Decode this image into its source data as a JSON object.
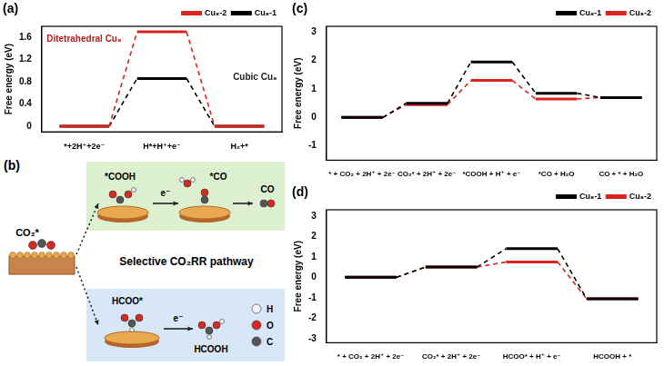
{
  "chart_data": [
    {
      "type": "line",
      "title": "(a)",
      "y_label": "Free energy (eV)",
      "categories": [
        "*+2H⁺+2e⁻",
        "H*+H⁺+e⁻",
        "H₂+*"
      ],
      "series": [
        {
          "name": "Cu₈-2",
          "color": "#d9231f",
          "values": [
            0,
            1.7,
            0
          ]
        },
        {
          "name": "Cu₈-1",
          "color": "#000000",
          "values": [
            0,
            0.86,
            0
          ]
        }
      ],
      "ylim": [
        -0.1,
        1.8
      ],
      "yticks": [
        0,
        0.4,
        0.8,
        1.2,
        1.6
      ],
      "grid": false,
      "legend": "upper right",
      "annotations": [
        {
          "text": "Ditetrahedral Cu₈",
          "color": "#b3201b"
        },
        {
          "text": "Cubic Cu₈",
          "color": "#222222"
        }
      ]
    },
    {
      "type": "line",
      "title": "(c)",
      "y_label": "Free energy (eV)",
      "categories": [
        "* + CO₂ + 2H⁺ + 2e⁻",
        "CO₂* + 2H⁺ + 2e⁻",
        "*COOH + H⁺ + e⁻",
        "*CO + H₂O",
        "CO + * + H₂O"
      ],
      "series": [
        {
          "name": "Cu₈-1",
          "color": "#000000",
          "values": [
            0,
            0.5,
            1.95,
            0.85,
            0.7
          ]
        },
        {
          "name": "Cu₈-2",
          "color": "#d9231f",
          "values": [
            0,
            0.45,
            1.3,
            0.65,
            0.7
          ]
        }
      ],
      "ylim": [
        -1.5,
        3.2
      ],
      "yticks": [
        -1,
        0,
        1,
        2,
        3
      ],
      "grid": false,
      "legend": "upper right"
    },
    {
      "type": "line",
      "title": "(d)",
      "y_label": "Free energy (eV)",
      "categories": [
        "* + CO₂ + 2H⁺ + 2e⁻",
        "CO₂* + 2H⁺ + 2e⁻",
        "HCOO* + H⁺ + e⁻",
        "HCOOH + *"
      ],
      "series": [
        {
          "name": "Cu₈-1",
          "color": "#000000",
          "values": [
            0,
            0.5,
            1.4,
            -1.05
          ]
        },
        {
          "name": "Cu₈-2",
          "color": "#d9231f",
          "values": [
            0,
            0.5,
            0.75,
            -1.05
          ]
        }
      ],
      "ylim": [
        -3.2,
        3.3
      ],
      "yticks": [
        -3,
        -2,
        -1,
        0,
        1,
        2,
        3
      ],
      "grid": false,
      "legend": "upper right"
    }
  ],
  "diagram": {
    "title": "(b)",
    "label": "Selective CO₂RR pathway",
    "reactant": "CO₂*",
    "upper_path": [
      "*COOH",
      "e⁻",
      "*CO",
      "CO"
    ],
    "lower_path": [
      "HCOO*",
      "e⁻",
      "HCOOH"
    ],
    "atoms": [
      {
        "label": "H",
        "color": "#f4f4f4"
      },
      {
        "label": "O",
        "color": "#d42a1f"
      },
      {
        "label": "C",
        "color": "#555555"
      }
    ]
  }
}
